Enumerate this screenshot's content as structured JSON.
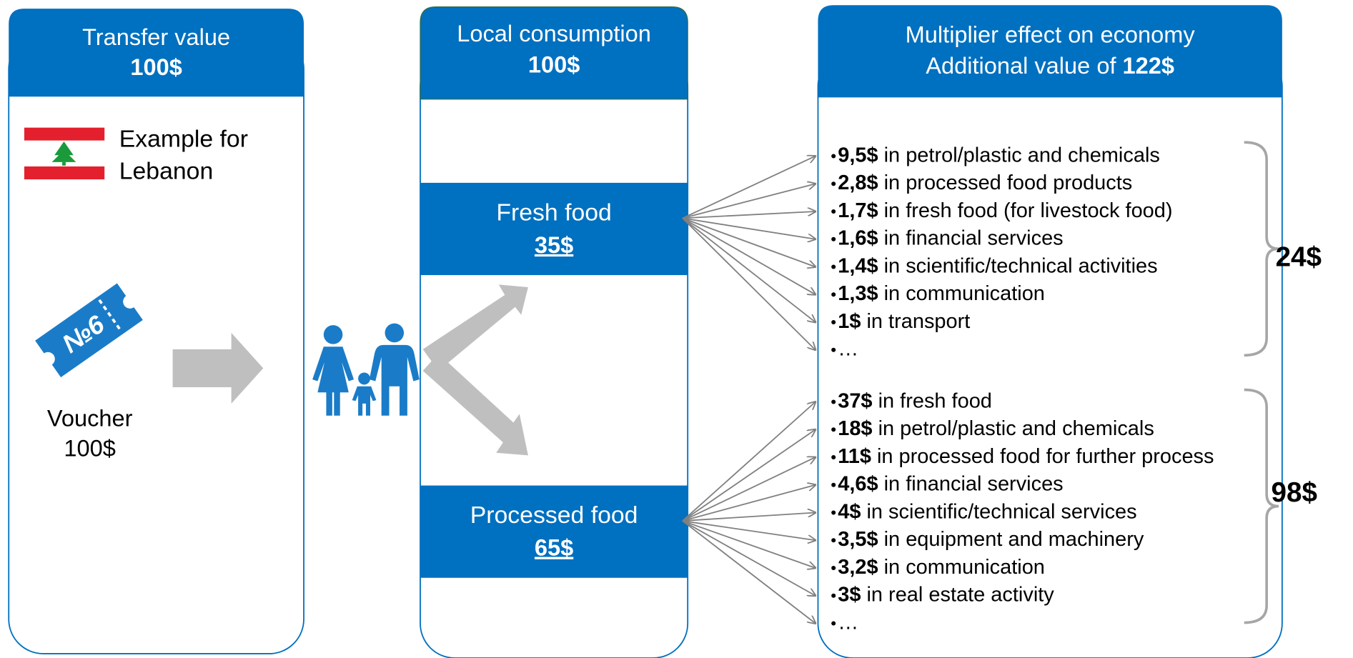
{
  "transfer": {
    "title": "Transfer value",
    "amount": "100$",
    "flag_caption": [
      "Example for",
      "Lebanon"
    ],
    "ticket_label": "№6",
    "voucher": [
      "Voucher",
      "100$"
    ]
  },
  "consumption": {
    "title": "Local consumption",
    "amount": "100$",
    "items": [
      {
        "label": "Fresh food",
        "amount": "35$"
      },
      {
        "label": "Processed food",
        "amount": "65$"
      }
    ]
  },
  "multiplier": {
    "title": "Multiplier effect on economy",
    "subtitle_prefix": "Additional value of ",
    "subtitle_amount": "122$",
    "groups": [
      {
        "total": "24$",
        "items": [
          {
            "amount": "9,5$",
            "text": " in petrol/plastic and chemicals"
          },
          {
            "amount": "2,8$",
            "text": " in processed food products"
          },
          {
            "amount": "1,7$",
            "text": " in fresh food (for livestock food)"
          },
          {
            "amount": "1,6$",
            "text": " in financial services"
          },
          {
            "amount": "1,4$",
            "text": " in scientific/technical activities"
          },
          {
            "amount": "1,3$",
            "text": " in communication"
          },
          {
            "amount": "1$",
            "text": " in transport"
          },
          {
            "text": "…"
          }
        ]
      },
      {
        "total": "98$",
        "items": [
          {
            "amount": "37$",
            "text": " in fresh food"
          },
          {
            "amount": "18$",
            "text": " in petrol/plastic and chemicals"
          },
          {
            "amount": "11$",
            "text": " in processed food for further process"
          },
          {
            "amount": "4,6$",
            "text": " in financial services"
          },
          {
            "amount": "4$",
            "text": " in scientific/technical services"
          },
          {
            "amount": "3,5$",
            "text": " in equipment and machinery"
          },
          {
            "amount": "3,2$",
            "text": " in communication"
          },
          {
            "amount": "3$",
            "text": " in real estate activity"
          },
          {
            "text": "…"
          }
        ]
      }
    ]
  }
}
